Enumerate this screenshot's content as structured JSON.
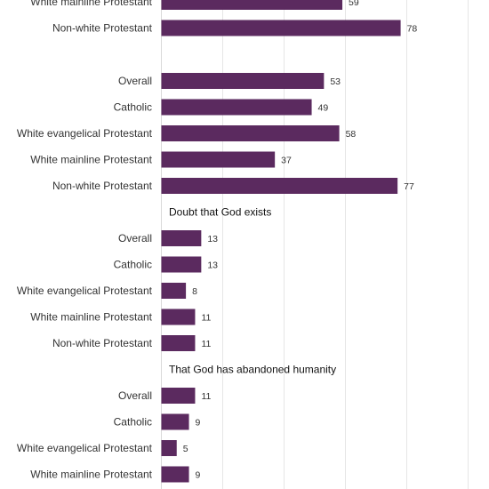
{
  "chart_data": {
    "type": "bar",
    "orientation": "horizontal",
    "bar_color": "#5b2a5f",
    "xlim": [
      0,
      100
    ],
    "grid": true,
    "groups": [
      {
        "title": "",
        "categories": [
          "White mainline Protestant",
          "Non-white Protestant"
        ],
        "values": [
          59,
          78
        ]
      },
      {
        "title": "",
        "categories": [
          "Overall",
          "Catholic",
          "White evangelical Protestant",
          "White mainline Protestant",
          "Non-white Protestant"
        ],
        "values": [
          53,
          49,
          58,
          37,
          77
        ]
      },
      {
        "title": "Doubt that God exists",
        "categories": [
          "Overall",
          "Catholic",
          "White evangelical Protestant",
          "White mainline Protestant",
          "Non-white Protestant"
        ],
        "values": [
          13,
          13,
          8,
          11,
          11
        ]
      },
      {
        "title": "That God has abandoned humanity",
        "categories": [
          "Overall",
          "Catholic",
          "White evangelical Protestant",
          "White mainline Protestant"
        ],
        "values": [
          11,
          9,
          5,
          9
        ]
      }
    ]
  }
}
